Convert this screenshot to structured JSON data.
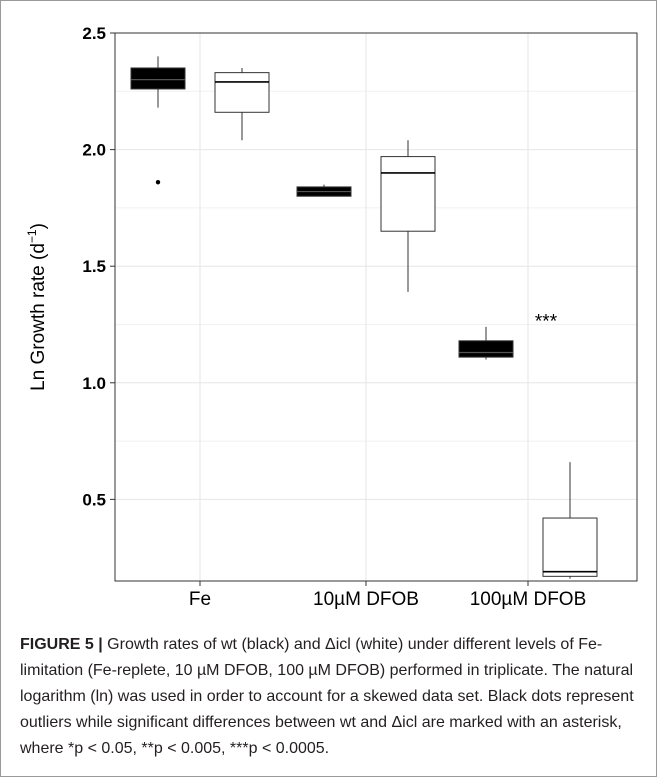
{
  "chart_data": {
    "type": "boxplot",
    "ylabel_main": "Ln Growth rate (d",
    "ylabel_sup": "−1",
    "ylabel_close": ")",
    "ylim": [
      0.15,
      2.5
    ],
    "y_ticks": [
      0.5,
      1.0,
      1.5,
      2.0,
      2.5
    ],
    "y_tick_labels": [
      "0.5",
      "1.0",
      "1.5",
      "2.0",
      "2.5"
    ],
    "grid": true,
    "categories": [
      "Fe",
      "10µM DFOB",
      "100µM DFOB"
    ],
    "series": [
      {
        "color": "#000000",
        "boxes": [
          {
            "min": 2.18,
            "q1": 2.26,
            "median": 2.3,
            "q3": 2.35,
            "max": 2.4,
            "outliers": [
              1.86
            ]
          },
          {
            "min": 1.8,
            "q1": 1.8,
            "median": 1.82,
            "q3": 1.84,
            "max": 1.85,
            "outliers": []
          },
          {
            "min": 1.1,
            "q1": 1.11,
            "median": 1.13,
            "q3": 1.18,
            "max": 1.24,
            "outliers": []
          }
        ]
      },
      {
        "color": "#ffffff",
        "boxes": [
          {
            "min": 2.04,
            "q1": 2.16,
            "median": 2.29,
            "q3": 2.33,
            "max": 2.35,
            "outliers": []
          },
          {
            "min": 1.39,
            "q1": 1.65,
            "median": 1.9,
            "q3": 1.97,
            "max": 2.04,
            "outliers": []
          },
          {
            "min": 0.16,
            "q1": 0.17,
            "median": 0.19,
            "q3": 0.42,
            "max": 0.66,
            "outliers": []
          }
        ]
      }
    ],
    "annotations": [
      {
        "text": "***",
        "category_index": 2,
        "y": 1.28
      }
    ]
  },
  "caption": {
    "label": "FIGURE 5 |",
    "text": "Growth rates of wt (black) and Δicl (white) under different levels of Fe-limitation (Fe-replete, 10 µM DFOB, 100 µM DFOB) performed in triplicate. The natural logarithm (ln) was used in order to account for a skewed data set. Black dots represent outliers while significant differences between wt and Δicl are marked with an asterisk, where *p < 0.05, **p < 0.005, ***p < 0.0005."
  }
}
